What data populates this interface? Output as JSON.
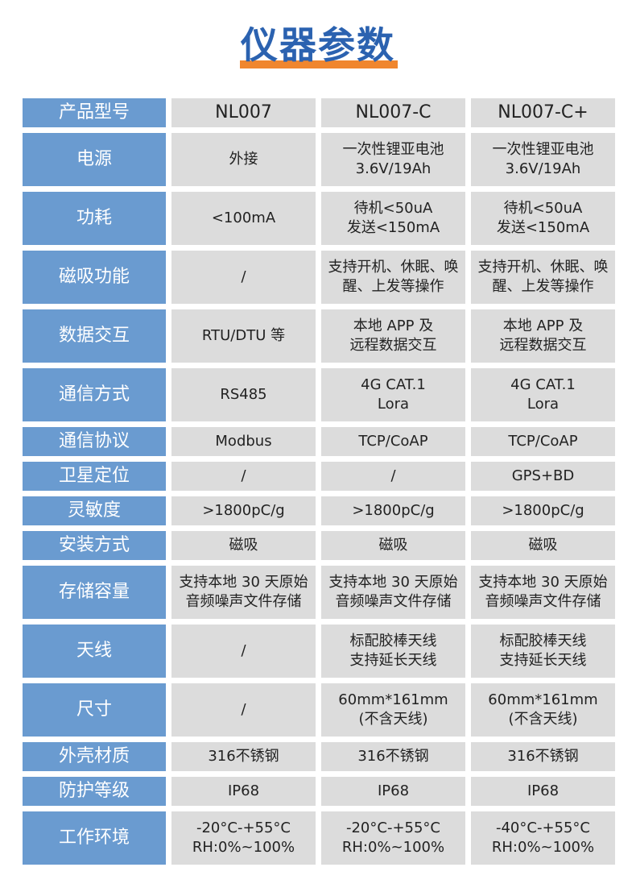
{
  "title": "仪器参数",
  "colors": {
    "title": "#2b62b0",
    "underline": "#f0862e",
    "header_cell": "#6a9bd0",
    "data_cell": "#dcdcdc"
  },
  "rows": [
    {
      "label": "产品型号",
      "cells": [
        [
          "NL007"
        ],
        [
          "NL007-C"
        ],
        [
          "NL007-C+"
        ]
      ],
      "tall": false
    },
    {
      "label": "电源",
      "cells": [
        [
          "外接"
        ],
        [
          "一次性锂亚电池",
          "3.6V/19Ah"
        ],
        [
          "一次性锂亚电池",
          "3.6V/19Ah"
        ]
      ],
      "tall": true
    },
    {
      "label": "功耗",
      "cells": [
        [
          "<100mA"
        ],
        [
          "待机<50uA",
          "发送<150mA"
        ],
        [
          "待机<50uA",
          "发送<150mA"
        ]
      ],
      "tall": true
    },
    {
      "label": "磁吸功能",
      "cells": [
        [
          "/"
        ],
        [
          "支持开机、休眠、唤",
          "醒、上发等操作"
        ],
        [
          "支持开机、休眠、唤",
          "醒、上发等操作"
        ]
      ],
      "tall": true
    },
    {
      "label": "数据交互",
      "cells": [
        [
          "RTU/DTU 等"
        ],
        [
          "本地 APP 及",
          "远程数据交互"
        ],
        [
          "本地 APP 及",
          "远程数据交互"
        ]
      ],
      "tall": true
    },
    {
      "label": "通信方式",
      "cells": [
        [
          "RS485"
        ],
        [
          "4G CAT.1",
          "Lora"
        ],
        [
          "4G CAT.1",
          "Lora"
        ]
      ],
      "tall": true
    },
    {
      "label": "通信协议",
      "cells": [
        [
          "Modbus"
        ],
        [
          "TCP/CoAP"
        ],
        [
          "TCP/CoAP"
        ]
      ],
      "tall": false
    },
    {
      "label": "卫星定位",
      "cells": [
        [
          "/"
        ],
        [
          "/"
        ],
        [
          "GPS+BD"
        ]
      ],
      "tall": false
    },
    {
      "label": "灵敏度",
      "cells": [
        [
          ">1800pC/g"
        ],
        [
          ">1800pC/g"
        ],
        [
          ">1800pC/g"
        ]
      ],
      "tall": false
    },
    {
      "label": "安装方式",
      "cells": [
        [
          "磁吸"
        ],
        [
          "磁吸"
        ],
        [
          "磁吸"
        ]
      ],
      "tall": false
    },
    {
      "label": "存储容量",
      "cells": [
        [
          "支持本地 30 天原始",
          "音频噪声文件存储"
        ],
        [
          "支持本地 30 天原始",
          "音频噪声文件存储"
        ],
        [
          "支持本地 30 天原始",
          "音频噪声文件存储"
        ]
      ],
      "tall": true
    },
    {
      "label": "天线",
      "cells": [
        [
          "/"
        ],
        [
          "标配胶棒天线",
          "支持延长天线"
        ],
        [
          "标配胶棒天线",
          "支持延长天线"
        ]
      ],
      "tall": true
    },
    {
      "label": "尺寸",
      "cells": [
        [
          "/"
        ],
        [
          "60mm*161mm",
          "(不含天线)"
        ],
        [
          "60mm*161mm",
          "(不含天线)"
        ]
      ],
      "tall": true
    },
    {
      "label": "外壳材质",
      "cells": [
        [
          "316不锈钢"
        ],
        [
          "316不锈钢"
        ],
        [
          "316不锈钢"
        ]
      ],
      "tall": false
    },
    {
      "label": "防护等级",
      "cells": [
        [
          "IP68"
        ],
        [
          "IP68"
        ],
        [
          "IP68"
        ]
      ],
      "tall": false
    },
    {
      "label": "工作环境",
      "cells": [
        [
          "-20°C-+55°C",
          "RH:0%~100%"
        ],
        [
          "-20°C-+55°C",
          "RH:0%~100%"
        ],
        [
          "-40°C-+55°C",
          "RH:0%~100%"
        ]
      ],
      "tall": true
    }
  ]
}
